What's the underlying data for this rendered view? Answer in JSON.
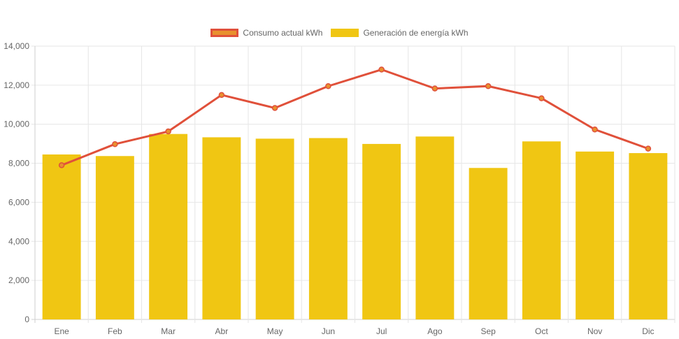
{
  "chart_data": {
    "type": "bar",
    "categories": [
      "Ene",
      "Feb",
      "Mar",
      "Abr",
      "May",
      "Jun",
      "Jul",
      "Ago",
      "Sep",
      "Oct",
      "Nov",
      "Dic"
    ],
    "series": [
      {
        "name": "Consumo actual kWh",
        "type": "line",
        "color": "#e0503a",
        "values": [
          7900,
          8980,
          9630,
          11500,
          10830,
          11950,
          12800,
          11830,
          11950,
          11330,
          9730,
          8750
        ]
      },
      {
        "name": "Generación de energía kWh",
        "type": "bar",
        "color": "#f0c613",
        "values": [
          8450,
          8370,
          9500,
          9330,
          9260,
          9290,
          8990,
          9370,
          7760,
          9120,
          8600,
          8520
        ]
      }
    ],
    "yticks": [
      "0",
      "2,000",
      "4,000",
      "6,000",
      "8,000",
      "10,000",
      "12,000",
      "14,000"
    ],
    "ylim": [
      0,
      14000
    ],
    "grid": true,
    "legend_position": "top"
  }
}
